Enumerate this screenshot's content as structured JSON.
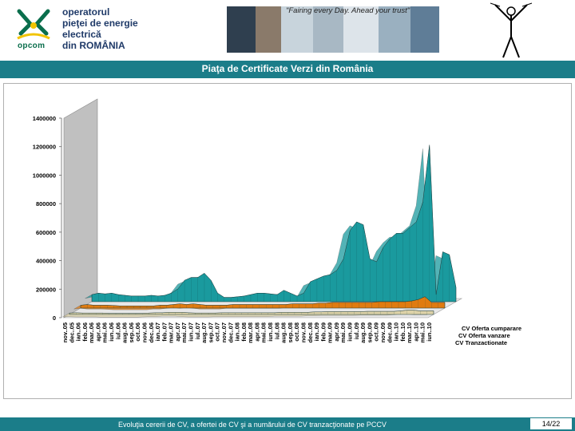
{
  "header": {
    "logo_text": "opcom",
    "company_lines": [
      "operatorul",
      "pieţei de energie",
      "electrică",
      "din ROMÂNIA"
    ],
    "slogan": "\"Fairing every Day. Ahead your trust\"",
    "brand_color": "#0a6e4c",
    "icons": [
      "opcom-logo-icon",
      "photo-strip",
      "figure-illustration"
    ]
  },
  "title": "Piaţa de Certificate Verzi din România",
  "footer": {
    "caption": "Evoluţia cererii de CV, a ofertei de CV şi a numărului de CV tranzacţionate pe PCCV",
    "page": "14/22"
  },
  "colors": {
    "title_bar": "#1b7d89",
    "series_demand": "#1a9a9e",
    "series_offer": "#e07b10",
    "series_traded": "#ddd2a8",
    "wall": "#c0c0c0"
  },
  "chart_data": {
    "type": "area",
    "three_d": true,
    "title": "",
    "ylim": [
      0,
      1400000
    ],
    "yticks": [
      0,
      200000,
      400000,
      600000,
      800000,
      1000000,
      1200000,
      1400000
    ],
    "ytick_labels": [
      "0",
      "200000",
      "400000",
      "600000",
      "800000",
      "1000000",
      "1200000",
      "1400000"
    ],
    "categories": [
      "nov..05",
      "dec..05",
      "ian..06",
      "feb..06",
      "mar..06",
      "apr..06",
      "mai..06",
      "iun..06",
      "iul..06",
      "aug..06",
      "sep..06",
      "oct..06",
      "nov..06",
      "dec..06",
      "ian..07",
      "feb..07",
      "mar..07",
      "apr..07",
      "mai..07",
      "iun..07",
      "iul..07",
      "aug..07",
      "sep..07",
      "oct..07",
      "nov..07",
      "dec..07",
      "ian..08",
      "feb..08",
      "mar..08",
      "apr..08",
      "mai..08",
      "iun..08",
      "iul..08",
      "aug..08",
      "sep..08",
      "oct..08",
      "nov..08",
      "dec..08",
      "ian..09",
      "feb..09",
      "mar..09",
      "apr..09",
      "mai..09",
      "iun..09",
      "iul..09",
      "aug..09",
      "sep..09",
      "oct..09",
      "nov..09",
      "dec..09",
      "ian..10",
      "feb..10",
      "mar..10",
      "apr..10",
      "mai..10",
      "iun..10"
    ],
    "series": [
      {
        "name": "CV Oferta cumparare",
        "values": [
          50000,
          60000,
          55000,
          60000,
          50000,
          45000,
          40000,
          40000,
          40000,
          45000,
          40000,
          45000,
          60000,
          90000,
          150000,
          170000,
          170000,
          200000,
          150000,
          60000,
          30000,
          30000,
          35000,
          40000,
          50000,
          60000,
          60000,
          55000,
          50000,
          80000,
          60000,
          40000,
          60000,
          140000,
          160000,
          180000,
          190000,
          220000,
          300000,
          500000,
          560000,
          540000,
          300000,
          280000,
          380000,
          440000,
          480000,
          480000,
          520000,
          560000,
          700000,
          1100000,
          50000,
          350000,
          330000,
          100000
        ]
      },
      {
        "name": "CV Oferta vanzare",
        "values": [
          20000,
          25000,
          20000,
          20000,
          20000,
          18000,
          15000,
          15000,
          15000,
          15000,
          15000,
          15000,
          20000,
          20000,
          25000,
          30000,
          25000,
          30000,
          25000,
          20000,
          20000,
          20000,
          20000,
          25000,
          25000,
          25000,
          25000,
          25000,
          25000,
          25000,
          25000,
          25000,
          30000,
          30000,
          30000,
          30000,
          35000,
          35000,
          40000,
          40000,
          40000,
          40000,
          40000,
          40000,
          40000,
          45000,
          45000,
          45000,
          45000,
          45000,
          50000,
          60000,
          80000,
          40000,
          40000,
          40000
        ]
      },
      {
        "name": "CV Tranzactionate",
        "values": [
          10000,
          12000,
          10000,
          10000,
          10000,
          10000,
          8000,
          8000,
          8000,
          8000,
          8000,
          8000,
          10000,
          12000,
          12000,
          15000,
          15000,
          15000,
          12000,
          10000,
          10000,
          10000,
          10000,
          12000,
          12000,
          12000,
          12000,
          12000,
          12000,
          12000,
          12000,
          12000,
          15000,
          15000,
          15000,
          15000,
          15000,
          18000,
          18000,
          20000,
          20000,
          20000,
          20000,
          20000,
          20000,
          22000,
          22000,
          22000,
          22000,
          22000,
          25000,
          30000,
          30000,
          25000,
          25000,
          25000
        ]
      }
    ],
    "legend": "right",
    "grid": false
  }
}
